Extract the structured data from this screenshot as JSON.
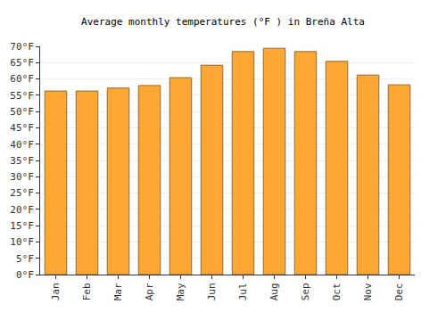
{
  "chart_data": {
    "type": "bar",
    "title": "Average monthly temperatures (°F ) in Breña Alta",
    "categories": [
      "Jan",
      "Feb",
      "Mar",
      "Apr",
      "May",
      "Jun",
      "Jul",
      "Aug",
      "Sep",
      "Oct",
      "Nov",
      "Dec"
    ],
    "values": [
      56.3,
      56.3,
      57.2,
      58.0,
      60.4,
      64.2,
      68.4,
      69.4,
      68.4,
      65.4,
      61.2,
      58.2
    ],
    "color": "#ffa733",
    "ylim": [
      0,
      70
    ],
    "yticks": [
      {
        "value": 0,
        "label": "0°F"
      },
      {
        "value": 5,
        "label": "5°F"
      },
      {
        "value": 10,
        "label": "10°F"
      },
      {
        "value": 15,
        "label": "15°F"
      },
      {
        "value": 20,
        "label": "20°F"
      },
      {
        "value": 25,
        "label": "25°F"
      },
      {
        "value": 30,
        "label": "30°F"
      },
      {
        "value": 35,
        "label": "35°F"
      },
      {
        "value": 40,
        "label": "40°F"
      },
      {
        "value": 45,
        "label": "45°F"
      },
      {
        "value": 50,
        "label": "50°F"
      },
      {
        "value": 55,
        "label": "55°F"
      },
      {
        "value": 60,
        "label": "60°F"
      },
      {
        "value": 65,
        "label": "65°F"
      },
      {
        "value": 70,
        "label": "70°F"
      }
    ],
    "grid": true
  }
}
